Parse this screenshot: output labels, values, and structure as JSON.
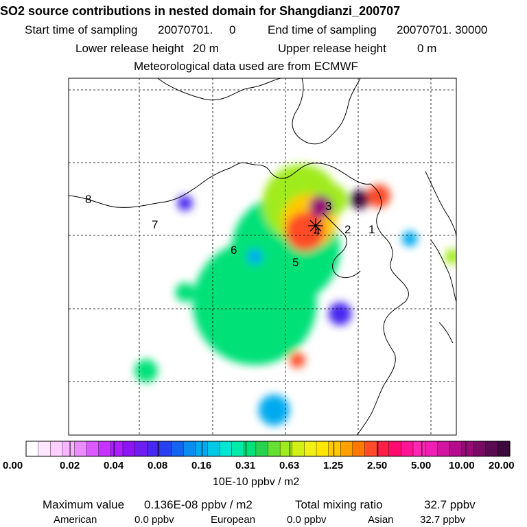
{
  "header": {
    "title": "SO2 source contributions in nested domain for Shangdianzi_200707",
    "start_label": "Start time of sampling",
    "start_value": "20070701.     0",
    "end_label": "End time of sampling",
    "end_value": "20070701. 30000",
    "lower_label": "Lower release height",
    "lower_value": "20 m",
    "upper_label": "Upper release height",
    "upper_value": "0 m",
    "meteo": "Meteorological data used are from ECMWF"
  },
  "chart_data": {
    "type": "heatmap",
    "site_marker": "Shangdianzi",
    "region_labels": [
      "1",
      "2",
      "3",
      "4",
      "5",
      "6",
      "7",
      "8"
    ],
    "colorbar": {
      "ticks": [
        "0.00",
        "0.02",
        "0.04",
        "0.08",
        "0.16",
        "0.31",
        "0.63",
        "1.25",
        "2.50",
        "5.00",
        "10.00",
        "20.00"
      ],
      "colors": [
        "#ffffff",
        "#ffe8ff",
        "#ffd0ff",
        "#f8b4ff",
        "#eb8cff",
        "#dc5aff",
        "#c832ff",
        "#aa1eff",
        "#8c14f5",
        "#6e1ef0",
        "#4628f0",
        "#2841f0",
        "#1464f0",
        "#0a8cf0",
        "#00aaf0",
        "#00c8e6",
        "#00e6d2",
        "#00ebaa",
        "#00e178",
        "#28d250",
        "#64e132",
        "#a0eb1e",
        "#d2f014",
        "#f0f014",
        "#ffe600",
        "#ffc800",
        "#ffa000",
        "#ff7800",
        "#ff4b28",
        "#ff1e46",
        "#ff0a6e",
        "#ff1496",
        "#ff28b4",
        "#f01eb4",
        "#d214a0",
        "#b40a8c",
        "#960a78",
        "#780a64",
        "#5a0a50",
        "#3c0a3c"
      ],
      "units": "10E-10 ppbv / m2"
    },
    "max_label": "Maximum value",
    "max_value": "0.136E-08 ppbv / m2",
    "total_label": "Total mixing ratio",
    "total_value": "32.7 ppbv",
    "contributions": [
      {
        "name": "American",
        "value": "0.0 ppbv"
      },
      {
        "name": "European",
        "value": "0.0 ppbv"
      },
      {
        "name": "Asian",
        "value": "32.7 ppbv"
      }
    ],
    "blobs": [
      {
        "lon": 0.48,
        "lat": 0.63,
        "level": 0.16,
        "r": 0.16
      },
      {
        "lon": 0.56,
        "lat": 0.48,
        "level": 0.16,
        "r": 0.14
      },
      {
        "lon": 0.6,
        "lat": 0.35,
        "level": 0.31,
        "r": 0.1
      },
      {
        "lon": 0.62,
        "lat": 0.4,
        "level": 0.63,
        "r": 0.07
      },
      {
        "lon": 0.61,
        "lat": 0.43,
        "level": 1.25,
        "r": 0.05
      },
      {
        "lon": 0.65,
        "lat": 0.36,
        "level": 5.0,
        "r": 0.03
      },
      {
        "lon": 0.68,
        "lat": 0.34,
        "level": 0.31,
        "r": 0.04
      },
      {
        "lon": 0.75,
        "lat": 0.34,
        "level": 10.0,
        "r": 0.025
      },
      {
        "lon": 0.8,
        "lat": 0.33,
        "level": 1.25,
        "r": 0.03
      },
      {
        "lon": 0.3,
        "lat": 0.35,
        "level": 0.04,
        "r": 0.02
      },
      {
        "lon": 0.48,
        "lat": 0.5,
        "level": 0.08,
        "r": 0.02
      },
      {
        "lon": 0.3,
        "lat": 0.6,
        "level": 0.16,
        "r": 0.025
      },
      {
        "lon": 0.2,
        "lat": 0.82,
        "level": 0.16,
        "r": 0.03
      },
      {
        "lon": 0.53,
        "lat": 0.93,
        "level": 0.08,
        "r": 0.04
      },
      {
        "lon": 0.59,
        "lat": 0.79,
        "level": 1.25,
        "r": 0.02
      },
      {
        "lon": 0.7,
        "lat": 0.66,
        "level": 0.04,
        "r": 0.03
      },
      {
        "lon": 0.88,
        "lat": 0.45,
        "level": 0.08,
        "r": 0.02
      },
      {
        "lon": 0.99,
        "lat": 0.5,
        "level": 0.31,
        "r": 0.02
      }
    ]
  }
}
